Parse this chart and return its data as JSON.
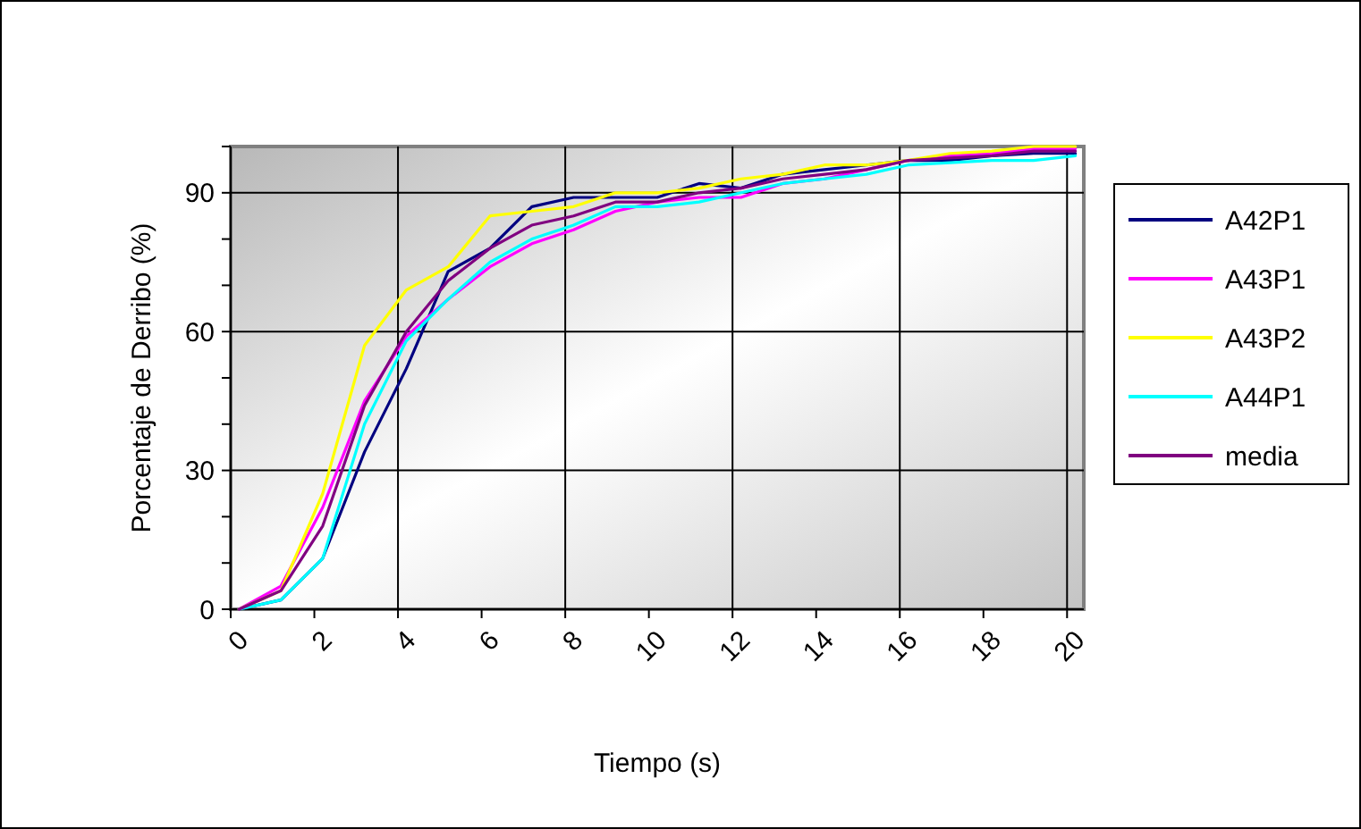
{
  "chart_data": {
    "type": "line",
    "xlabel": "Tiempo (s)",
    "ylabel": "Porcentaje de Derribo (%)",
    "x": [
      0.2,
      1.2,
      2.2,
      3.2,
      4.2,
      5.2,
      6.2,
      7.2,
      8.2,
      9.2,
      10.2,
      11.2,
      12.2,
      13.2,
      14.2,
      15.2,
      16.2,
      17.2,
      18.2,
      19.2,
      20.2
    ],
    "series": [
      {
        "name": "A42P1",
        "color": "#000080",
        "values": [
          0,
          2,
          11,
          34,
          52,
          73,
          78,
          87,
          89,
          89,
          89,
          92,
          91,
          94,
          95,
          96,
          97,
          97,
          98,
          98.5,
          98.5
        ]
      },
      {
        "name": "A43P1",
        "color": "#ff00ff",
        "values": [
          0,
          5,
          22,
          45,
          59,
          67,
          74,
          79,
          82,
          86,
          88,
          89,
          89,
          92,
          93,
          95,
          97,
          98,
          98.5,
          99.5,
          99.5
        ]
      },
      {
        "name": "A43P2",
        "color": "#ffff00",
        "values": [
          0,
          4,
          25,
          57,
          69,
          74,
          85,
          86,
          87,
          90,
          90,
          91,
          93,
          94,
          96,
          96,
          97,
          98.5,
          99,
          100,
          100
        ]
      },
      {
        "name": "A44P1",
        "color": "#00ffff",
        "values": [
          0,
          2,
          11,
          40,
          58,
          67,
          75,
          80,
          83,
          87,
          87,
          88,
          90,
          92,
          93,
          94,
          96,
          96.5,
          97,
          97,
          98
        ]
      },
      {
        "name": "media",
        "color": "#800080",
        "values": [
          0,
          4,
          18,
          44,
          60,
          71,
          78,
          83,
          85,
          88,
          88,
          90,
          91,
          93,
          94,
          95,
          97,
          97.5,
          98,
          99,
          99
        ]
      }
    ],
    "xlim": [
      0,
      20.4
    ],
    "xticks": [
      0,
      2,
      4,
      6,
      8,
      10,
      12,
      14,
      16,
      18,
      20
    ],
    "ylim": [
      0,
      100
    ],
    "yticks": [
      0,
      {
        "value": 10,
        "label": null
      },
      {
        "value": 20,
        "label": null
      },
      30,
      {
        "value": 40,
        "label": null
      },
      {
        "value": 50,
        "label": null
      },
      60,
      {
        "value": 70,
        "label": null
      },
      {
        "value": 80,
        "label": null
      },
      90,
      {
        "value": 100,
        "label": null
      }
    ],
    "grid": true,
    "legend": "right",
    "marker": "none",
    "line_style": "solid"
  }
}
